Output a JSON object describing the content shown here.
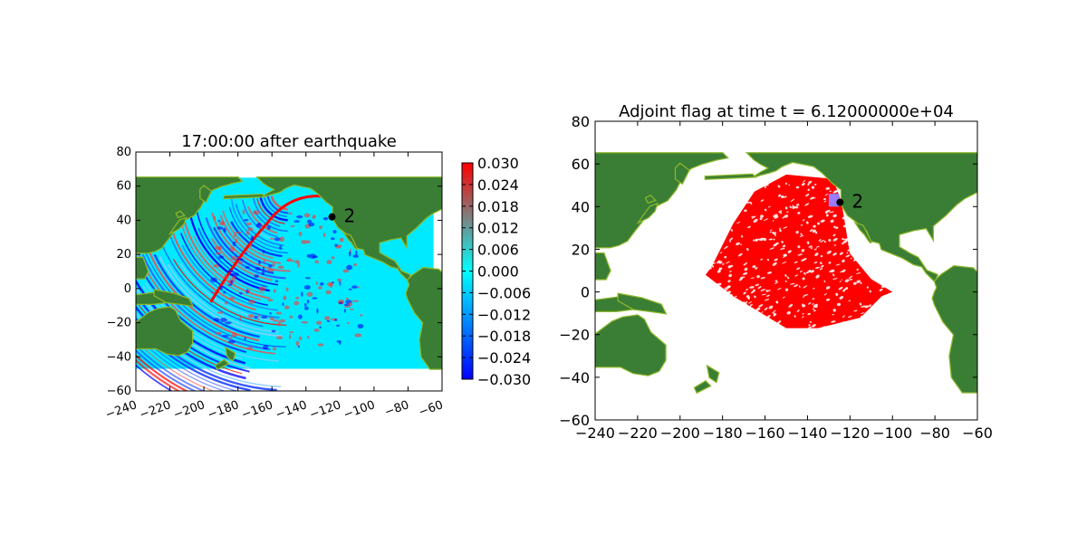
{
  "chart_data": [
    {
      "type": "heatmap",
      "title": "17:00:00 after earthquake",
      "xlim": [
        -240,
        -60
      ],
      "ylim": [
        -60,
        80
      ],
      "xticks": [
        -240,
        -220,
        -200,
        -180,
        -160,
        -140,
        -120,
        -100,
        -80,
        -60
      ],
      "yticks": [
        -60,
        -40,
        -20,
        0,
        20,
        40,
        60,
        80
      ],
      "xtick_rotation_deg": 20,
      "grid": false,
      "data_extent": {
        "x": [
          -240,
          -65
        ],
        "y": [
          -47,
          65
        ]
      },
      "gauge": {
        "label": "2",
        "x": -124.7,
        "y": 42.0
      },
      "colorbar": {
        "range": [
          -0.03,
          0.03
        ],
        "ticks": [
          "0.030",
          "0.024",
          "0.018",
          "0.012",
          "0.006",
          "0.000",
          "−0.006",
          "−0.012",
          "−0.018",
          "−0.024",
          "−0.030"
        ],
        "colors": [
          "#0000ff",
          "#00ffff",
          "#ff0000"
        ],
        "placement": "right"
      },
      "colors": {
        "land": "#3a7d35",
        "coast": "#8db82a",
        "water": "#00eaff"
      }
    },
    {
      "type": "heatmap",
      "title": "Adjoint flag at time t = 6.12000000e+04",
      "xlim": [
        -240,
        -60
      ],
      "ylim": [
        -60,
        80
      ],
      "xticks": [
        -240,
        -220,
        -200,
        -180,
        -160,
        -140,
        -120,
        -100,
        -80,
        -60
      ],
      "yticks": [
        -60,
        -40,
        -20,
        0,
        20,
        40,
        60,
        80
      ],
      "grid": false,
      "data_extent": {
        "x": [
          -240,
          -65
        ],
        "y": [
          -47,
          65
        ]
      },
      "gauge": {
        "label": "2",
        "x": -124.7,
        "y": 42.0
      },
      "gauge_region": {
        "x": [
          -130,
          -125
        ],
        "y": [
          40,
          46
        ]
      },
      "colors": {
        "land": "#3a7d35",
        "coast": "#8db82a",
        "flag": "#ff0000",
        "region": "#9b7bff",
        "water": "#ffffff"
      }
    }
  ]
}
